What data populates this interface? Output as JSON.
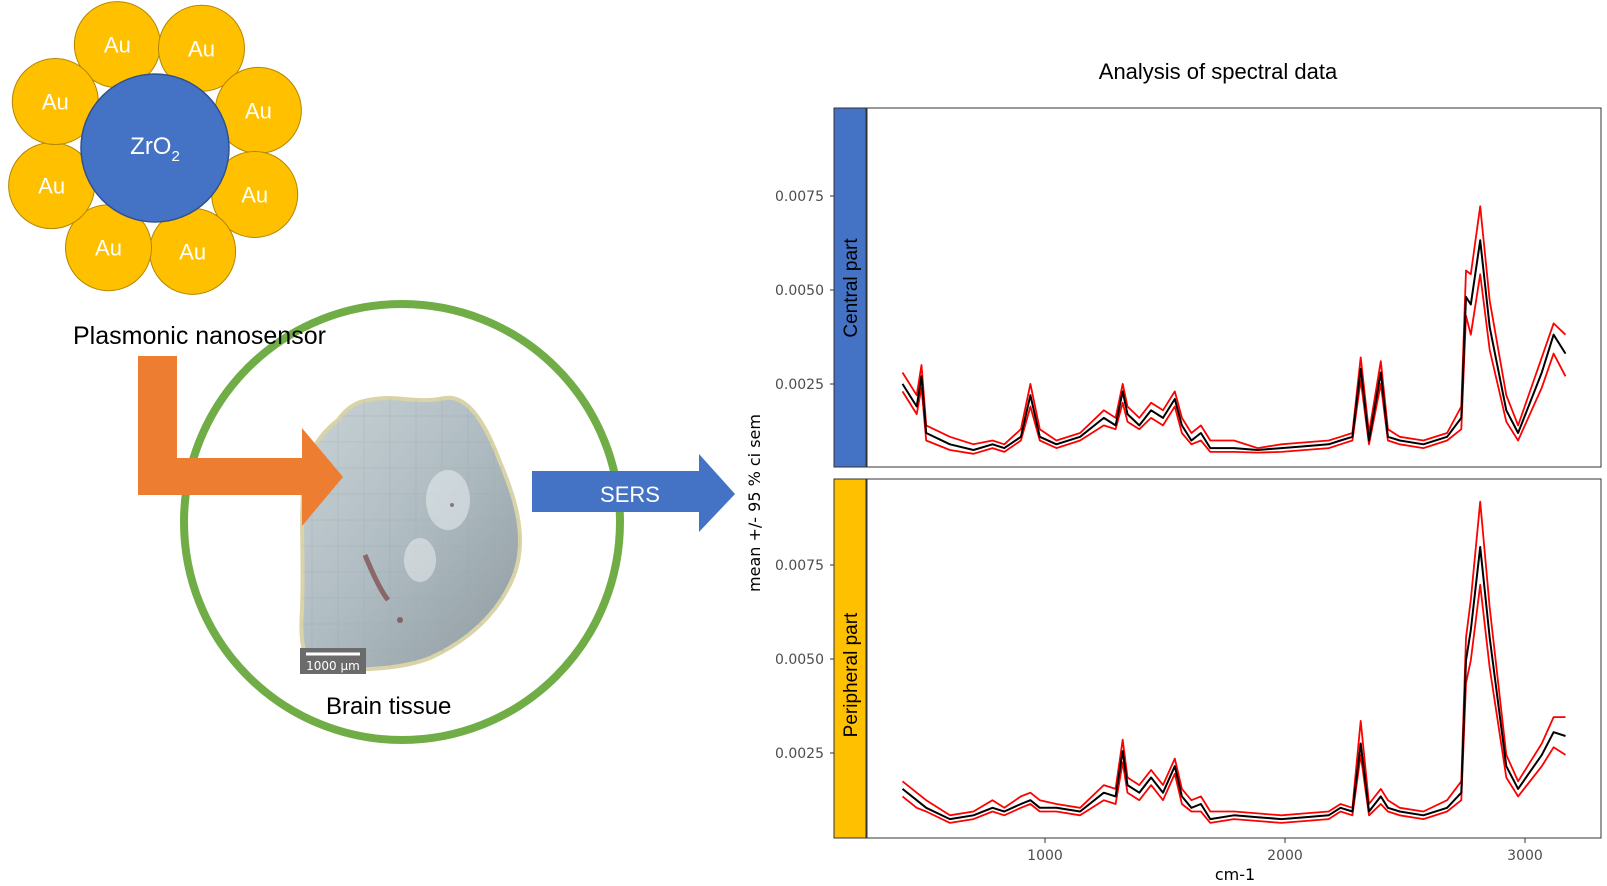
{
  "nanosensor": {
    "core_label": "ZrO",
    "core_subscript": "2",
    "shell_label": "Au",
    "shell_count": 8,
    "caption": "Plasmonic nanosensor",
    "core_color": "#4472C4",
    "shell_color": "#FFC000"
  },
  "tissue": {
    "caption": "Brain tissue",
    "scale_bar": "1000 µm",
    "ring_color": "#70AD47"
  },
  "arrows": {
    "sers_label": "SERS",
    "sers_color": "#4472C4",
    "bend_color": "#ED7D31"
  },
  "chart": {
    "title": "Analysis of spectral data",
    "ylabel": "mean +/- 95 % ci sem",
    "xlabel": "cm-1",
    "xticks": [
      "1000",
      "2000",
      "3000"
    ],
    "panels": [
      {
        "label": "Central part",
        "strip_color": "#4472C4",
        "yticks": [
          "0.0075",
          "0.0050",
          "0.0025"
        ]
      },
      {
        "label": "Peripheral part",
        "strip_color": "#FFC000",
        "yticks": [
          "0.0075",
          "0.0050",
          "0.0025"
        ]
      }
    ]
  },
  "chart_data": {
    "type": "line",
    "title": "Analysis of spectral data",
    "xlabel": "cm-1",
    "ylabel": "mean +/- 95 % ci sem",
    "xlim": [
      250,
      3350
    ],
    "ylim": [
      0.0005,
      0.01
    ],
    "facets": [
      "Central part",
      "Peripheral part"
    ],
    "series": [
      {
        "name": "Central part",
        "x": [
          400,
          460,
          480,
          500,
          600,
          700,
          780,
          830,
          900,
          940,
          980,
          1050,
          1150,
          1250,
          1300,
          1330,
          1350,
          1400,
          1450,
          1500,
          1550,
          1580,
          1620,
          1660,
          1700,
          1800,
          1900,
          2000,
          2100,
          2200,
          2250,
          2300,
          2335,
          2370,
          2420,
          2450,
          2500,
          2600,
          2700,
          2760,
          2780,
          2800,
          2840,
          2880,
          2950,
          3000,
          3100,
          3150,
          3200
        ],
        "mean": [
          0.0027,
          0.0021,
          0.0029,
          0.0014,
          0.0011,
          0.00095,
          0.0011,
          0.001,
          0.0013,
          0.0024,
          0.0013,
          0.0011,
          0.0013,
          0.0018,
          0.0016,
          0.0025,
          0.0019,
          0.0016,
          0.002,
          0.0018,
          0.0023,
          0.0016,
          0.0012,
          0.0014,
          0.001,
          0.001,
          0.00095,
          0.001,
          0.00105,
          0.0011,
          0.0012,
          0.0013,
          0.0031,
          0.0012,
          0.003,
          0.0013,
          0.0012,
          0.0011,
          0.0013,
          0.0018,
          0.005,
          0.0048,
          0.0065,
          0.0042,
          0.002,
          0.0014,
          0.003,
          0.004,
          0.0035
        ],
        "lower": [
          0.0025,
          0.0019,
          0.0026,
          0.0012,
          0.00095,
          0.00085,
          0.001,
          0.0009,
          0.0012,
          0.0021,
          0.0012,
          0.001,
          0.0012,
          0.0016,
          0.0015,
          0.0022,
          0.0017,
          0.0015,
          0.0018,
          0.0016,
          0.0021,
          0.0014,
          0.0011,
          0.0012,
          0.0009,
          0.0009,
          0.00088,
          0.0009,
          0.00095,
          0.001,
          0.0011,
          0.0012,
          0.0028,
          0.0011,
          0.0027,
          0.0012,
          0.0011,
          0.001,
          0.0012,
          0.0015,
          0.0045,
          0.004,
          0.0056,
          0.0036,
          0.0017,
          0.0012,
          0.0026,
          0.0035,
          0.0029
        ],
        "upper": [
          0.003,
          0.0024,
          0.0032,
          0.0016,
          0.0013,
          0.0011,
          0.0012,
          0.0011,
          0.0015,
          0.0027,
          0.0015,
          0.0012,
          0.0014,
          0.002,
          0.0018,
          0.0027,
          0.0021,
          0.0018,
          0.0022,
          0.002,
          0.0025,
          0.0018,
          0.0014,
          0.0016,
          0.0012,
          0.0012,
          0.001,
          0.0011,
          0.00115,
          0.0012,
          0.0013,
          0.0014,
          0.0034,
          0.0014,
          0.0033,
          0.0015,
          0.0013,
          0.0012,
          0.0014,
          0.0021,
          0.0057,
          0.0056,
          0.0074,
          0.0049,
          0.0024,
          0.0016,
          0.0034,
          0.0043,
          0.004
        ]
      },
      {
        "name": "Peripheral part",
        "x": [
          400,
          460,
          500,
          600,
          700,
          780,
          830,
          900,
          940,
          980,
          1050,
          1150,
          1250,
          1300,
          1330,
          1350,
          1400,
          1450,
          1500,
          1550,
          1580,
          1620,
          1660,
          1700,
          1800,
          1900,
          2000,
          2100,
          2200,
          2250,
          2300,
          2335,
          2370,
          2420,
          2450,
          2500,
          2600,
          2700,
          2760,
          2780,
          2800,
          2840,
          2880,
          2950,
          3000,
          3100,
          3150,
          3200
        ],
        "mean": [
          0.0018,
          0.0015,
          0.0013,
          0.001,
          0.0011,
          0.0013,
          0.0012,
          0.0014,
          0.0015,
          0.0013,
          0.0013,
          0.0012,
          0.0017,
          0.0016,
          0.0028,
          0.0019,
          0.0017,
          0.0021,
          0.0017,
          0.0024,
          0.0016,
          0.0013,
          0.0014,
          0.001,
          0.0011,
          0.00105,
          0.001,
          0.00105,
          0.0011,
          0.0013,
          0.0012,
          0.003,
          0.0012,
          0.0016,
          0.0013,
          0.0012,
          0.0011,
          0.0013,
          0.0017,
          0.0052,
          0.006,
          0.0082,
          0.0058,
          0.0024,
          0.0018,
          0.0027,
          0.0033,
          0.0032
        ],
        "lower": [
          0.0016,
          0.0013,
          0.0012,
          0.0009,
          0.001,
          0.0012,
          0.0011,
          0.0013,
          0.0014,
          0.0012,
          0.0012,
          0.0011,
          0.0015,
          0.0014,
          0.0025,
          0.0017,
          0.0015,
          0.0019,
          0.0015,
          0.0022,
          0.0014,
          0.0012,
          0.0012,
          0.0009,
          0.001,
          0.00095,
          0.0009,
          0.00095,
          0.001,
          0.0012,
          0.0011,
          0.0027,
          0.0011,
          0.0014,
          0.0012,
          0.0011,
          0.001,
          0.0012,
          0.0015,
          0.0046,
          0.0052,
          0.0072,
          0.005,
          0.0021,
          0.0016,
          0.0024,
          0.0029,
          0.0027
        ],
        "upper": [
          0.002,
          0.0017,
          0.0015,
          0.0011,
          0.0012,
          0.0015,
          0.0013,
          0.0016,
          0.0017,
          0.0015,
          0.0014,
          0.0013,
          0.0019,
          0.0018,
          0.0031,
          0.0021,
          0.0019,
          0.0023,
          0.0019,
          0.0026,
          0.0018,
          0.0015,
          0.0016,
          0.0012,
          0.0012,
          0.00115,
          0.0011,
          0.00115,
          0.0012,
          0.0014,
          0.0013,
          0.0036,
          0.0014,
          0.0018,
          0.0015,
          0.0013,
          0.0012,
          0.0015,
          0.002,
          0.0058,
          0.0068,
          0.0094,
          0.0066,
          0.0027,
          0.002,
          0.003,
          0.0037,
          0.0037
        ]
      }
    ],
    "grid": false,
    "legend": "none"
  }
}
